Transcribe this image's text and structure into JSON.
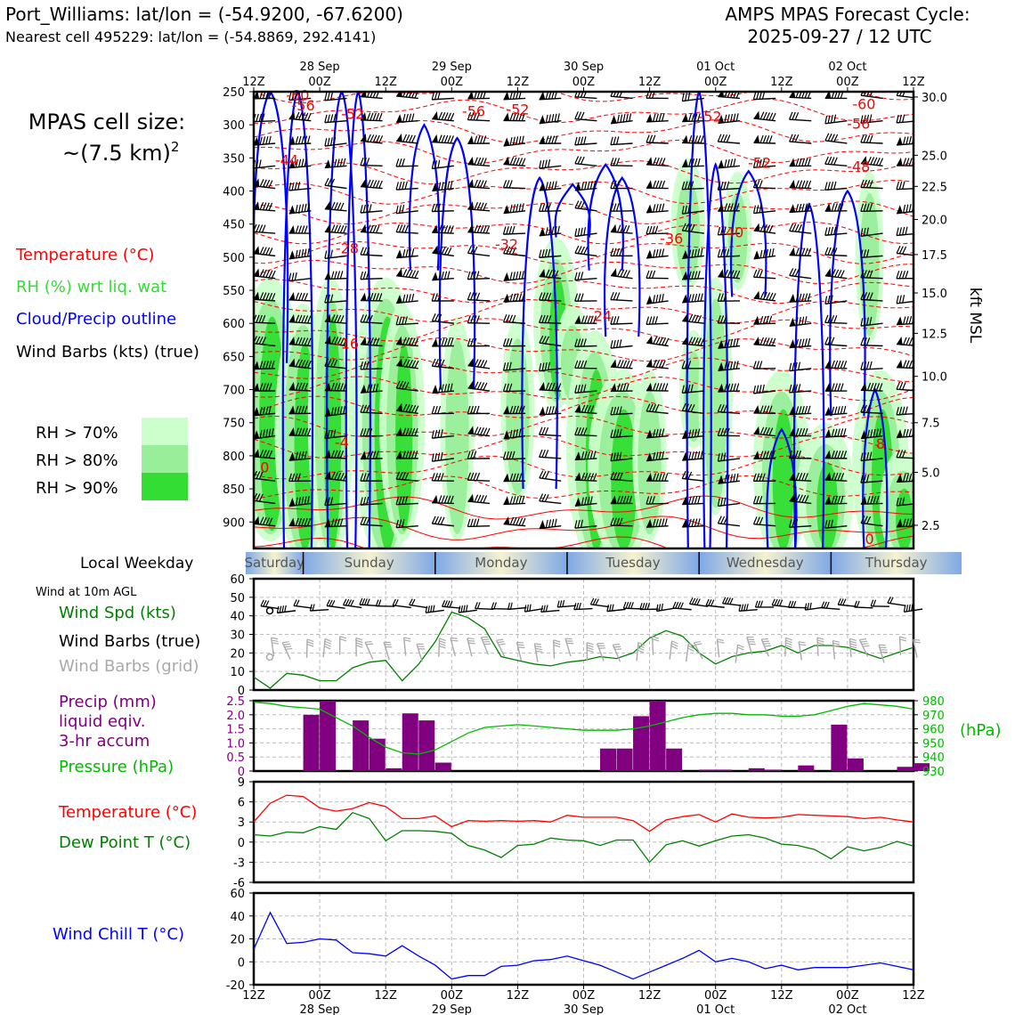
{
  "header": {
    "station_line": "Port_Williams: lat/lon = (-54.9200, -67.6200)",
    "cell_line": "Nearest cell 495229: lat/lon = (-54.8869, 292.4141)",
    "cycle_title": "AMPS MPAS Forecast Cycle:",
    "cycle_time": "2025-09-27 / 12 UTC"
  },
  "sidebar": {
    "cell_size_label": "MPAS cell size:",
    "cell_size_value": "~(7.5 km)",
    "cell_size_exp": "2",
    "legend_temp": "Temperature (°C)",
    "legend_rh": "RH (%) wrt liq. wat",
    "legend_cloud": "Cloud/Precip outline",
    "legend_barbs": "Wind Barbs (kts) (true)",
    "rh_levels": [
      "RH > 70%",
      "RH > 80%",
      "RH > 90%"
    ],
    "local_weekday_label": "Local Weekday",
    "wind10_label": "Wind at 10m AGL",
    "wind_spd_label": "Wind Spd (kts)",
    "wind_barbs_true_label": "Wind Barbs (true)",
    "wind_barbs_grid_label": "Wind Barbs (grid)",
    "precip_label_1": "Precip (mm)",
    "precip_label_2": "liquid eqiv.",
    "precip_label_3": "3-hr accum",
    "pressure_label": "Pressure (hPa)",
    "temp_label": "Temperature (°C)",
    "dew_label": "Dew Point T (°C)",
    "windchill_label": "Wind Chill T (°C)",
    "hpa_right_label": "(hPa)",
    "kft_label": "kft MSL"
  },
  "colors": {
    "temp": "#ff0000",
    "rh70": "#ccffcc",
    "rh80": "#99ee99",
    "rh90": "#33dd33",
    "cloud": "#0000ff",
    "wind_spd": "#008000",
    "grid_barb": "#aaaaaa",
    "precip": "#800080",
    "pressure": "#00bb00",
    "dew": "#008000",
    "windchill": "#0000ff",
    "weekday_blue": "#7fa8e6",
    "weekday_yellow": "#f4f0c8"
  },
  "chart_data": [
    {
      "type": "heatmap",
      "name": "time-height cross section",
      "x_top_ticks": [
        "12Z",
        "00Z",
        "12Z",
        "00Z",
        "12Z",
        "00Z",
        "12Z",
        "00Z",
        "12Z",
        "00Z",
        "12Z"
      ],
      "x_top_dates": [
        "28 Sep",
        "29 Sep",
        "30 Sep",
        "01 Oct",
        "02 Oct"
      ],
      "y_pressure_ticks": [
        250,
        300,
        350,
        400,
        450,
        500,
        550,
        600,
        650,
        700,
        750,
        800,
        850,
        900
      ],
      "ylim": [
        940,
        250
      ],
      "kft_ticks": [
        {
          "label": "30.0",
          "p": 258
        },
        {
          "label": "25.0",
          "p": 346
        },
        {
          "label": "22.5",
          "p": 393
        },
        {
          "label": "20.0",
          "p": 443
        },
        {
          "label": "17.5",
          "p": 496
        },
        {
          "label": "15.0",
          "p": 554
        },
        {
          "label": "12.5",
          "p": 615
        },
        {
          "label": "10.0",
          "p": 680
        },
        {
          "label": "7.5",
          "p": 750
        },
        {
          "label": "5.0",
          "p": 825
        },
        {
          "label": "2.5",
          "p": 905
        }
      ],
      "temp_labels": [
        {
          "t": 8,
          "p": 255,
          "v": "-60"
        },
        {
          "t": 9,
          "p": 270,
          "v": "-56"
        },
        {
          "t": 18,
          "p": 283,
          "v": "-52"
        },
        {
          "t": 40,
          "p": 279,
          "v": "-56"
        },
        {
          "t": 48,
          "p": 276,
          "v": "-52"
        },
        {
          "t": 83,
          "p": 287,
          "v": "-52"
        },
        {
          "t": 111,
          "p": 268,
          "v": "-60"
        },
        {
          "t": 110,
          "p": 298,
          "v": "-56"
        },
        {
          "t": 92,
          "p": 357,
          "v": "-52"
        },
        {
          "t": 110,
          "p": 362,
          "v": "-48"
        },
        {
          "t": 6,
          "p": 353,
          "v": "-44"
        },
        {
          "t": 17,
          "p": 486,
          "v": "-28"
        },
        {
          "t": 46,
          "p": 480,
          "v": "-32"
        },
        {
          "t": 76,
          "p": 471,
          "v": "-36"
        },
        {
          "t": 87,
          "p": 462,
          "v": "-40"
        },
        {
          "t": 63,
          "p": 588,
          "v": "-24"
        },
        {
          "t": 17,
          "p": 630,
          "v": "-16"
        },
        {
          "t": 16,
          "p": 779,
          "v": "-4"
        },
        {
          "t": 2,
          "p": 817,
          "v": "0"
        },
        {
          "t": 114,
          "p": 781,
          "v": "8"
        },
        {
          "t": 112,
          "p": 925,
          "v": "0"
        }
      ]
    },
    {
      "type": "line",
      "name": "wind 10m",
      "x": [
        0,
        3,
        6,
        9,
        12,
        15,
        18,
        21,
        24,
        27,
        30,
        33,
        36,
        39,
        42,
        45,
        48,
        51,
        54,
        57,
        60,
        63,
        66,
        69,
        72,
        75,
        78,
        81,
        84,
        87,
        90,
        93,
        96,
        99,
        102,
        105,
        108,
        111,
        114,
        117,
        120
      ],
      "values": [
        7,
        1,
        9,
        8,
        5,
        5,
        12,
        15,
        16,
        5,
        14,
        26,
        42,
        39,
        33,
        18,
        16,
        14,
        13,
        15,
        16,
        18,
        17,
        20,
        28,
        32,
        29,
        20,
        14,
        18,
        20,
        21,
        24,
        20,
        24,
        24,
        23,
        20,
        17,
        20,
        23
      ],
      "ylim": [
        0,
        60
      ],
      "yticks": [
        0,
        10,
        20,
        30,
        40,
        50,
        60
      ]
    },
    {
      "type": "bar",
      "name": "precip 3hr",
      "bars": [
        {
          "t": 10.5,
          "v": 2.0
        },
        {
          "t": 13.5,
          "v": 2.5
        },
        {
          "t": 16.5,
          "v": 0.0
        },
        {
          "t": 19.5,
          "v": 1.8
        },
        {
          "t": 22.5,
          "v": 1.15
        },
        {
          "t": 25.5,
          "v": 0.1
        },
        {
          "t": 28.5,
          "v": 2.05
        },
        {
          "t": 31.5,
          "v": 1.8
        },
        {
          "t": 34.5,
          "v": 0.3
        },
        {
          "t": 64.5,
          "v": 0.8
        },
        {
          "t": 67.5,
          "v": 0.8
        },
        {
          "t": 70.5,
          "v": 1.95
        },
        {
          "t": 73.5,
          "v": 2.5
        },
        {
          "t": 76.5,
          "v": 0.8
        },
        {
          "t": 82.5,
          "v": 0.05
        },
        {
          "t": 85.5,
          "v": 0.05
        },
        {
          "t": 91.5,
          "v": 0.1
        },
        {
          "t": 94.5,
          "v": 0.05
        },
        {
          "t": 100.5,
          "v": 0.2
        },
        {
          "t": 106.5,
          "v": 1.65
        },
        {
          "t": 109.5,
          "v": 0.45
        },
        {
          "t": 118.5,
          "v": 0.15
        },
        {
          "t": 121.5,
          "v": 0.28
        }
      ],
      "ylim": [
        0,
        2.5
      ],
      "yticks": [
        "0",
        "0.5",
        "1.0",
        "1.5",
        "2.0",
        "2.5"
      ],
      "pressure_values": [
        979,
        978,
        976,
        975,
        974,
        968,
        962,
        954,
        947,
        943,
        942,
        945,
        951,
        957,
        961,
        962,
        963,
        962,
        961,
        960,
        959,
        959,
        959,
        960,
        962,
        965,
        968,
        970,
        971,
        971,
        970,
        970,
        969,
        969,
        970,
        973,
        976,
        978,
        977,
        976,
        974
      ],
      "pressure_ylim": [
        930,
        980
      ],
      "pressure_ticks": [
        "930",
        "940",
        "950",
        "960",
        "970",
        "980"
      ]
    },
    {
      "type": "line",
      "name": "temperature and dew point",
      "temp_values": [
        3,
        5.8,
        7,
        6.8,
        5.1,
        4.6,
        5,
        5.9,
        5.3,
        3.5,
        3.5,
        3.9,
        2.3,
        3.2,
        3.1,
        3.2,
        3.1,
        3.2,
        3,
        4,
        3.7,
        3.7,
        3.7,
        3.2,
        1.6,
        3.3,
        3.8,
        4.1,
        3,
        4.2,
        3.7,
        3.6,
        3.7,
        4.1,
        4,
        3.9,
        3.8,
        3.5,
        3.7,
        3.3,
        3
      ],
      "dew_values": [
        1.1,
        0.9,
        1.5,
        1.4,
        2.3,
        1.9,
        4.4,
        3.5,
        0.2,
        1.7,
        1.7,
        1.6,
        1.3,
        -0.5,
        -1.2,
        -2.3,
        -0.5,
        -0.3,
        0.6,
        0.3,
        0.2,
        -0.5,
        0.3,
        0.3,
        -3,
        -0.4,
        0.2,
        -0.6,
        0.2,
        0.9,
        1.1,
        0.6,
        -0.3,
        -0.5,
        -1.1,
        -2.5,
        -0.7,
        -1.3,
        -0.8,
        0.1,
        -0.6
      ],
      "ylim": [
        -6,
        9
      ],
      "yticks": [
        "-6",
        "-3",
        "0",
        "3",
        "6",
        "9"
      ]
    },
    {
      "type": "line",
      "name": "wind chill",
      "values": [
        11,
        43,
        16,
        17,
        20,
        19,
        8,
        7,
        5,
        14,
        5,
        -3,
        -15,
        -12,
        -12,
        -4,
        -3,
        1,
        2,
        5,
        1,
        -3,
        -9,
        -15,
        -9,
        -3,
        3,
        10,
        0,
        3,
        0,
        -6,
        -3,
        -7,
        -5,
        -5,
        -5,
        -3,
        -1,
        -4,
        -7
      ],
      "ylim": [
        -20,
        60
      ],
      "yticks": [
        "-20",
        "0",
        "20",
        "40",
        "60"
      ]
    }
  ],
  "weekdays": {
    "labels": [
      "Saturday",
      "Sunday",
      "Monday",
      "Tuesday",
      "Wednesday",
      "Thursday"
    ]
  },
  "x_axis_bottom": {
    "ticks": [
      "12Z",
      "00Z",
      "12Z",
      "00Z",
      "12Z",
      "00Z",
      "12Z",
      "00Z",
      "12Z",
      "00Z",
      "12Z"
    ],
    "dates": [
      "28 Sep",
      "29 Sep",
      "30 Sep",
      "01 Oct",
      "02 Oct"
    ]
  }
}
